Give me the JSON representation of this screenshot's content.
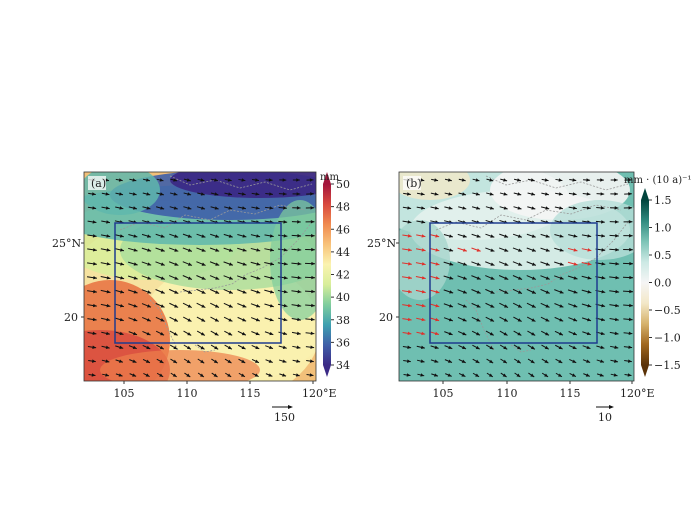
{
  "panels": [
    {
      "id": "a",
      "tag": "(a)",
      "unit": "mm",
      "colorbar_ticks": [
        "50",
        "48",
        "46",
        "44",
        "42",
        "40",
        "38",
        "36",
        "34"
      ],
      "colormap": [
        "#3b2a86",
        "#3f5fa8",
        "#3ea0b0",
        "#7fcd9d",
        "#d8ee9a",
        "#fbf3b0",
        "#f8c27a",
        "#f08a4f",
        "#d8493f",
        "#a3163d"
      ],
      "vmin": 34,
      "vmax": 50,
      "x_ticks": [
        "105",
        "110",
        "115",
        "120°E"
      ],
      "y_ticks": [
        "25°N",
        "20"
      ],
      "scale_label": "150",
      "box_color": "#1f3c8f"
    },
    {
      "id": "b",
      "tag": "(b)",
      "unit": "mm · (10 a)⁻¹",
      "colorbar_ticks": [
        "1.5",
        "1.0",
        "0.5",
        "0.0",
        "−0.5",
        "−1.0",
        "−1.5"
      ],
      "colormap": [
        "#5a3207",
        "#a0671f",
        "#d6b26c",
        "#f3e8c8",
        "#f5f5f5",
        "#cce9e4",
        "#7cc3b6",
        "#2f8a7f",
        "#01443d"
      ],
      "vmin": -1.5,
      "vmax": 1.5,
      "x_ticks": [
        "105",
        "110",
        "115",
        "120°E"
      ],
      "y_ticks": [
        "25°N",
        "20"
      ],
      "scale_label": "10",
      "box_color": "#1f3c8f"
    }
  ],
  "colors": {
    "arrow": "#111111",
    "arrow_significant": "#e0302a",
    "coastline": "#9a9a9a"
  }
}
